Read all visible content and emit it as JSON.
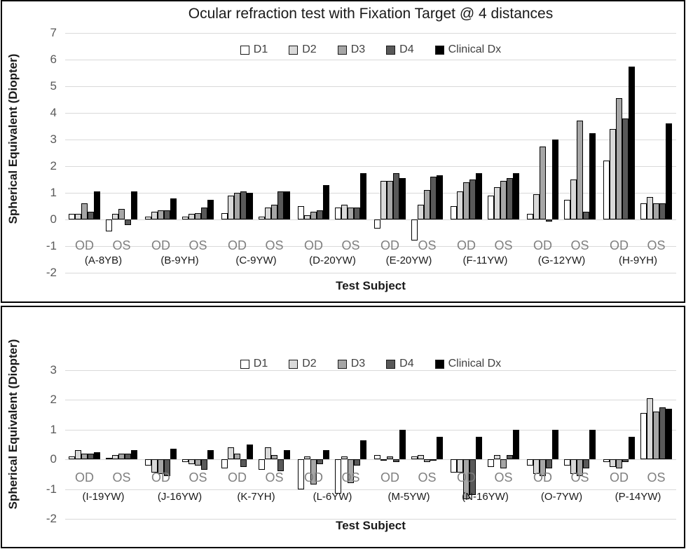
{
  "chart_data": [
    {
      "type": "bar",
      "title": "Ocular refraction test with Fixation Target @ 4 distances",
      "ylabel": "Spherical Equivalent (Diopter)",
      "xlabel": "Test Subject",
      "ylim": [
        -2,
        7
      ],
      "yticks": [
        7,
        6,
        5,
        4,
        3,
        2,
        1,
        0,
        -1,
        -2
      ],
      "grid": true,
      "legend_position": "top-center",
      "series": [
        "D1",
        "D2",
        "D3",
        "D4",
        "Clinical Dx"
      ],
      "series_colors": [
        "#ffffff",
        "#d9d9d9",
        "#a6a6a6",
        "#595959",
        "#000000"
      ],
      "cluster_labels": [
        "OD",
        "OS"
      ],
      "groups": [
        {
          "label": "(A-8YB)",
          "OD": [
            0.2,
            0.2,
            0.6,
            0.3,
            1.05
          ],
          "OS": [
            -0.45,
            0.2,
            0.4,
            -0.2,
            1.05
          ]
        },
        {
          "label": "(B-9YH)",
          "OD": [
            0.1,
            0.3,
            0.35,
            0.35,
            0.8
          ],
          "OS": [
            0.1,
            0.2,
            0.25,
            0.45,
            0.75
          ]
        },
        {
          "label": "(C-9YW)",
          "OD": [
            0.25,
            0.9,
            1.0,
            1.05,
            1.0
          ],
          "OS": [
            0.1,
            0.45,
            0.55,
            1.05,
            1.05
          ]
        },
        {
          "label": "(D-20YW)",
          "OD": [
            0.5,
            0.15,
            0.3,
            0.35,
            1.3
          ],
          "OS": [
            0.45,
            0.55,
            0.45,
            0.45,
            1.75
          ]
        },
        {
          "label": "(E-20YW)",
          "OD": [
            -0.35,
            1.45,
            1.45,
            1.75,
            1.55
          ],
          "OS": [
            -0.8,
            0.55,
            1.1,
            1.6,
            1.65
          ]
        },
        {
          "label": "(F-11YW)",
          "OD": [
            0.5,
            1.05,
            1.4,
            1.5,
            1.75
          ],
          "OS": [
            0.9,
            1.2,
            1.45,
            1.55,
            1.75
          ]
        },
        {
          "label": "(G-12YW)",
          "OD": [
            0.2,
            0.95,
            2.75,
            -0.07,
            3.0
          ],
          "OS": [
            0.75,
            1.5,
            3.7,
            0.3,
            3.25
          ]
        },
        {
          "label": "(H-9YH)",
          "OD": [
            2.2,
            3.4,
            4.55,
            3.8,
            5.75
          ],
          "OS": [
            0.6,
            0.85,
            0.6,
            0.6,
            3.6
          ]
        }
      ]
    },
    {
      "type": "bar",
      "title": "",
      "ylabel": "Spherical Equivalent (Diopter)",
      "xlabel": "Test Subject",
      "ylim": [
        -2,
        3
      ],
      "yticks": [
        3,
        2,
        1,
        0,
        -1,
        -2
      ],
      "grid": true,
      "legend_position": "top-center",
      "series": [
        "D1",
        "D2",
        "D3",
        "D4",
        "Clinical Dx"
      ],
      "series_colors": [
        "#ffffff",
        "#d9d9d9",
        "#a6a6a6",
        "#595959",
        "#000000"
      ],
      "cluster_labels": [
        "OD",
        "OS"
      ],
      "groups": [
        {
          "label": "(I-19YW)",
          "OD": [
            0.1,
            0.3,
            0.2,
            0.2,
            0.25
          ],
          "OS": [
            0.05,
            0.15,
            0.2,
            0.2,
            0.3
          ]
        },
        {
          "label": "(J-16YW)",
          "OD": [
            -0.2,
            -0.45,
            -0.5,
            -0.55,
            0.35
          ],
          "OS": [
            -0.1,
            -0.15,
            -0.2,
            -0.35,
            0.3
          ]
        },
        {
          "label": "(K-7YH)",
          "OD": [
            -0.3,
            0.4,
            0.2,
            -0.25,
            0.5
          ],
          "OS": [
            -0.35,
            0.4,
            0.15,
            -0.4,
            0.3
          ]
        },
        {
          "label": "(L-6YW)",
          "OD": [
            -1.0,
            0.1,
            -0.85,
            -0.15,
            0.3
          ],
          "OS": [
            -1.15,
            0.1,
            -0.8,
            -0.2,
            0.65
          ]
        },
        {
          "label": "(M-5YW)",
          "OD": [
            0.15,
            -0.05,
            0.1,
            -0.1,
            1.0
          ],
          "OS": [
            0.1,
            0.15,
            -0.1,
            -0.05,
            0.75
          ]
        },
        {
          "label": "(N-16YW)",
          "OD": [
            -0.45,
            -0.45,
            -1.35,
            -1.2,
            0.75
          ],
          "OS": [
            -0.25,
            0.15,
            -0.3,
            0.15,
            1.0
          ]
        },
        {
          "label": "(O-7YW)",
          "OD": [
            -0.2,
            -0.5,
            -0.55,
            -0.3,
            1.0
          ],
          "OS": [
            -0.2,
            -0.5,
            -0.55,
            -0.3,
            1.0
          ]
        },
        {
          "label": "(P-14YW)",
          "OD": [
            -0.1,
            -0.25,
            -0.3,
            -0.1,
            0.75
          ],
          "OS": [
            1.55,
            2.05,
            1.6,
            1.75,
            1.7
          ]
        }
      ]
    }
  ],
  "colors": {
    "grid": "#d9d9d9",
    "bar_border": "#000000",
    "tick_text": "#595959",
    "eye_label_text": "#7f7f7f"
  }
}
